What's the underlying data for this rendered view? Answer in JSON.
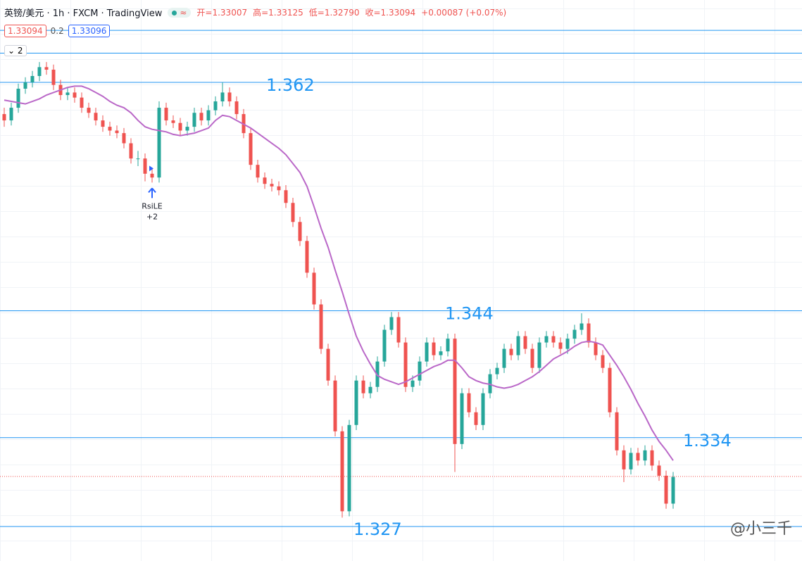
{
  "header": {
    "symbol": "英镑/美元 · 1h · FXCM · TradingView",
    "badge": "≈",
    "ohlc": [
      "开=1.33007",
      "高=1.33125",
      "低=1.32790",
      "收=1.33094",
      "+0.00087 (+0.07%)"
    ],
    "bid": "1.33094",
    "spread": "0.2",
    "ask": "1.33096",
    "indicator_count": "2"
  },
  "watermark": "@小三千",
  "chart_data": {
    "type": "candlestick",
    "ylim": [
      1.32428,
      1.36849
    ],
    "up_color": "#26a69a",
    "down_color": "#ef5350",
    "ma_color": "#ba68c8",
    "level_color": "#2196f3",
    "last_color": "#ef5350",
    "labeled_levels": [
      1.362,
      1.344,
      1.334,
      1.327
    ],
    "other_levels": [
      1.3661,
      1.3643
    ],
    "last_price": 1.33094,
    "signal": {
      "label": "RsiLE",
      "size": "+2"
    },
    "candles": [
      [
        1.3595,
        1.36,
        1.3585,
        1.359
      ],
      [
        1.359,
        1.3604,
        1.3586,
        1.36
      ],
      [
        1.36,
        1.3619,
        1.3596,
        1.3615
      ],
      [
        1.3615,
        1.3624,
        1.3611,
        1.362
      ],
      [
        1.362,
        1.3629,
        1.3616,
        1.3625
      ],
      [
        1.3625,
        1.3636,
        1.3621,
        1.3632
      ],
      [
        1.3632,
        1.3636,
        1.3626,
        1.363
      ],
      [
        1.363,
        1.3634,
        1.3614,
        1.3618
      ],
      [
        1.3618,
        1.3622,
        1.3606,
        1.361
      ],
      [
        1.361,
        1.3616,
        1.3606,
        1.3612
      ],
      [
        1.3612,
        1.3616,
        1.3604,
        1.3608
      ],
      [
        1.3608,
        1.3612,
        1.3596,
        1.36
      ],
      [
        1.36,
        1.3604,
        1.3592,
        1.3596
      ],
      [
        1.3596,
        1.36,
        1.3586,
        1.359
      ],
      [
        1.359,
        1.3594,
        1.3581,
        1.3585
      ],
      [
        1.3585,
        1.3589,
        1.3578,
        1.3582
      ],
      [
        1.3582,
        1.3586,
        1.3576,
        1.358
      ],
      [
        1.358,
        1.3584,
        1.3568,
        1.3572
      ],
      [
        1.3572,
        1.3576,
        1.3556,
        1.356
      ],
      [
        1.356,
        1.3566,
        1.3554,
        1.356
      ],
      [
        1.356,
        1.3564,
        1.3542,
        1.3548
      ],
      [
        1.3548,
        1.3552,
        1.3541,
        1.3545
      ],
      [
        1.3545,
        1.3605,
        1.3541,
        1.36
      ],
      [
        1.36,
        1.3604,
        1.3586,
        1.359
      ],
      [
        1.359,
        1.3594,
        1.3584,
        1.3588
      ],
      [
        1.3588,
        1.3592,
        1.3578,
        1.3582
      ],
      [
        1.3582,
        1.3589,
        1.3578,
        1.3585
      ],
      [
        1.3585,
        1.36,
        1.3581,
        1.3596
      ],
      [
        1.3596,
        1.36,
        1.3586,
        1.359
      ],
      [
        1.359,
        1.3602,
        1.3586,
        1.3598
      ],
      [
        1.3598,
        1.3609,
        1.3594,
        1.3605
      ],
      [
        1.3605,
        1.362,
        1.3601,
        1.3612
      ],
      [
        1.3612,
        1.3616,
        1.3601,
        1.3605
      ],
      [
        1.3605,
        1.3609,
        1.3591,
        1.3595
      ],
      [
        1.3595,
        1.3599,
        1.3576,
        1.358
      ],
      [
        1.358,
        1.3584,
        1.3551,
        1.3555
      ],
      [
        1.3555,
        1.3559,
        1.3541,
        1.3545
      ],
      [
        1.3545,
        1.3549,
        1.3536,
        1.354
      ],
      [
        1.354,
        1.3544,
        1.3534,
        1.3538
      ],
      [
        1.3538,
        1.3542,
        1.3531,
        1.3535
      ],
      [
        1.3535,
        1.3539,
        1.3521,
        1.3525
      ],
      [
        1.3525,
        1.3529,
        1.3506,
        1.351
      ],
      [
        1.351,
        1.3514,
        1.3491,
        1.3495
      ],
      [
        1.3495,
        1.3499,
        1.3466,
        1.347
      ],
      [
        1.347,
        1.3474,
        1.3441,
        1.3445
      ],
      [
        1.3445,
        1.3449,
        1.3406,
        1.341
      ],
      [
        1.341,
        1.3414,
        1.3381,
        1.3385
      ],
      [
        1.3385,
        1.3389,
        1.3341,
        1.3345
      ],
      [
        1.3345,
        1.3349,
        1.3277,
        1.3282
      ],
      [
        1.3282,
        1.3354,
        1.3278,
        1.335
      ],
      [
        1.335,
        1.3389,
        1.3346,
        1.3385
      ],
      [
        1.3385,
        1.3389,
        1.3371,
        1.3375
      ],
      [
        1.3375,
        1.3384,
        1.3371,
        1.338
      ],
      [
        1.338,
        1.3404,
        1.3376,
        1.34
      ],
      [
        1.34,
        1.3429,
        1.3396,
        1.3425
      ],
      [
        1.3425,
        1.3439,
        1.3421,
        1.3435
      ],
      [
        1.3435,
        1.3439,
        1.3411,
        1.3415
      ],
      [
        1.3415,
        1.3419,
        1.3376,
        1.338
      ],
      [
        1.338,
        1.3389,
        1.3376,
        1.3385
      ],
      [
        1.3385,
        1.3404,
        1.3381,
        1.34
      ],
      [
        1.34,
        1.3419,
        1.3396,
        1.3415
      ],
      [
        1.3415,
        1.3419,
        1.3401,
        1.3405
      ],
      [
        1.3405,
        1.3412,
        1.3401,
        1.3408
      ],
      [
        1.3408,
        1.3422,
        1.3404,
        1.3418
      ],
      [
        1.3418,
        1.3422,
        1.3313,
        1.3335
      ],
      [
        1.3335,
        1.3379,
        1.3331,
        1.3375
      ],
      [
        1.3375,
        1.3379,
        1.3356,
        1.336
      ],
      [
        1.336,
        1.3364,
        1.3346,
        1.335
      ],
      [
        1.335,
        1.3379,
        1.3346,
        1.3375
      ],
      [
        1.3375,
        1.3394,
        1.3371,
        1.339
      ],
      [
        1.339,
        1.3399,
        1.3386,
        1.3395
      ],
      [
        1.3395,
        1.3414,
        1.3391,
        1.341
      ],
      [
        1.341,
        1.3414,
        1.3401,
        1.3405
      ],
      [
        1.3405,
        1.3424,
        1.3401,
        1.342
      ],
      [
        1.342,
        1.3424,
        1.3406,
        1.341
      ],
      [
        1.341,
        1.3414,
        1.3391,
        1.3395
      ],
      [
        1.3395,
        1.3419,
        1.3391,
        1.3415
      ],
      [
        1.3415,
        1.3424,
        1.3411,
        1.342
      ],
      [
        1.342,
        1.3424,
        1.3411,
        1.3415
      ],
      [
        1.3415,
        1.3419,
        1.3406,
        1.341
      ],
      [
        1.341,
        1.3422,
        1.3406,
        1.3418
      ],
      [
        1.3418,
        1.3429,
        1.3414,
        1.3425
      ],
      [
        1.3425,
        1.3438,
        1.3421,
        1.343
      ],
      [
        1.343,
        1.3434,
        1.3411,
        1.3415
      ],
      [
        1.3415,
        1.3419,
        1.3401,
        1.3405
      ],
      [
        1.3405,
        1.3409,
        1.3391,
        1.3395
      ],
      [
        1.3395,
        1.3399,
        1.3356,
        1.336
      ],
      [
        1.336,
        1.3364,
        1.3326,
        1.333
      ],
      [
        1.333,
        1.3334,
        1.3305,
        1.3315
      ],
      [
        1.3315,
        1.3332,
        1.3311,
        1.3328
      ],
      [
        1.3328,
        1.3332,
        1.3318,
        1.3322
      ],
      [
        1.3322,
        1.3334,
        1.3318,
        1.333
      ],
      [
        1.333,
        1.3334,
        1.3314,
        1.3318
      ],
      [
        1.3318,
        1.3322,
        1.3306,
        1.331
      ],
      [
        1.331,
        1.3314,
        1.3284,
        1.3288
      ],
      [
        1.3288,
        1.3313,
        1.3284,
        1.3309
      ]
    ],
    "ma": [
      1.3606,
      1.3605,
      1.3604,
      1.3603,
      1.3605,
      1.3607,
      1.361,
      1.3612,
      1.3614,
      1.3616,
      1.3617,
      1.3617,
      1.3615,
      1.3612,
      1.3609,
      1.3605,
      1.3602,
      1.36,
      1.3596,
      1.359,
      1.3585,
      1.3583,
      1.3582,
      1.3581,
      1.3579,
      1.3578,
      1.3579,
      1.358,
      1.3582,
      1.3584,
      1.359,
      1.3594,
      1.3593,
      1.359,
      1.3587,
      1.3584,
      1.358,
      1.3576,
      1.3572,
      1.3568,
      1.3563,
      1.3556,
      1.3549,
      1.3538,
      1.3522,
      1.3505,
      1.349,
      1.3472,
      1.3455,
      1.3437,
      1.342,
      1.3408,
      1.3398,
      1.3389,
      1.3386,
      1.3384,
      1.3382,
      1.3384,
      1.3387,
      1.339,
      1.3393,
      1.3396,
      1.3398,
      1.3401,
      1.3401,
      1.3395,
      1.3388,
      1.3385,
      1.3383,
      1.3382,
      1.338,
      1.3379,
      1.338,
      1.3382,
      1.3385,
      1.3388,
      1.3392,
      1.3397,
      1.3402,
      1.3405,
      1.3408,
      1.3412,
      1.3415,
      1.3416,
      1.3415,
      1.3413,
      1.3405,
      1.3397,
      1.3388,
      1.3378,
      1.3367,
      1.3357,
      1.3346,
      1.3337,
      1.333,
      1.3322
    ]
  }
}
